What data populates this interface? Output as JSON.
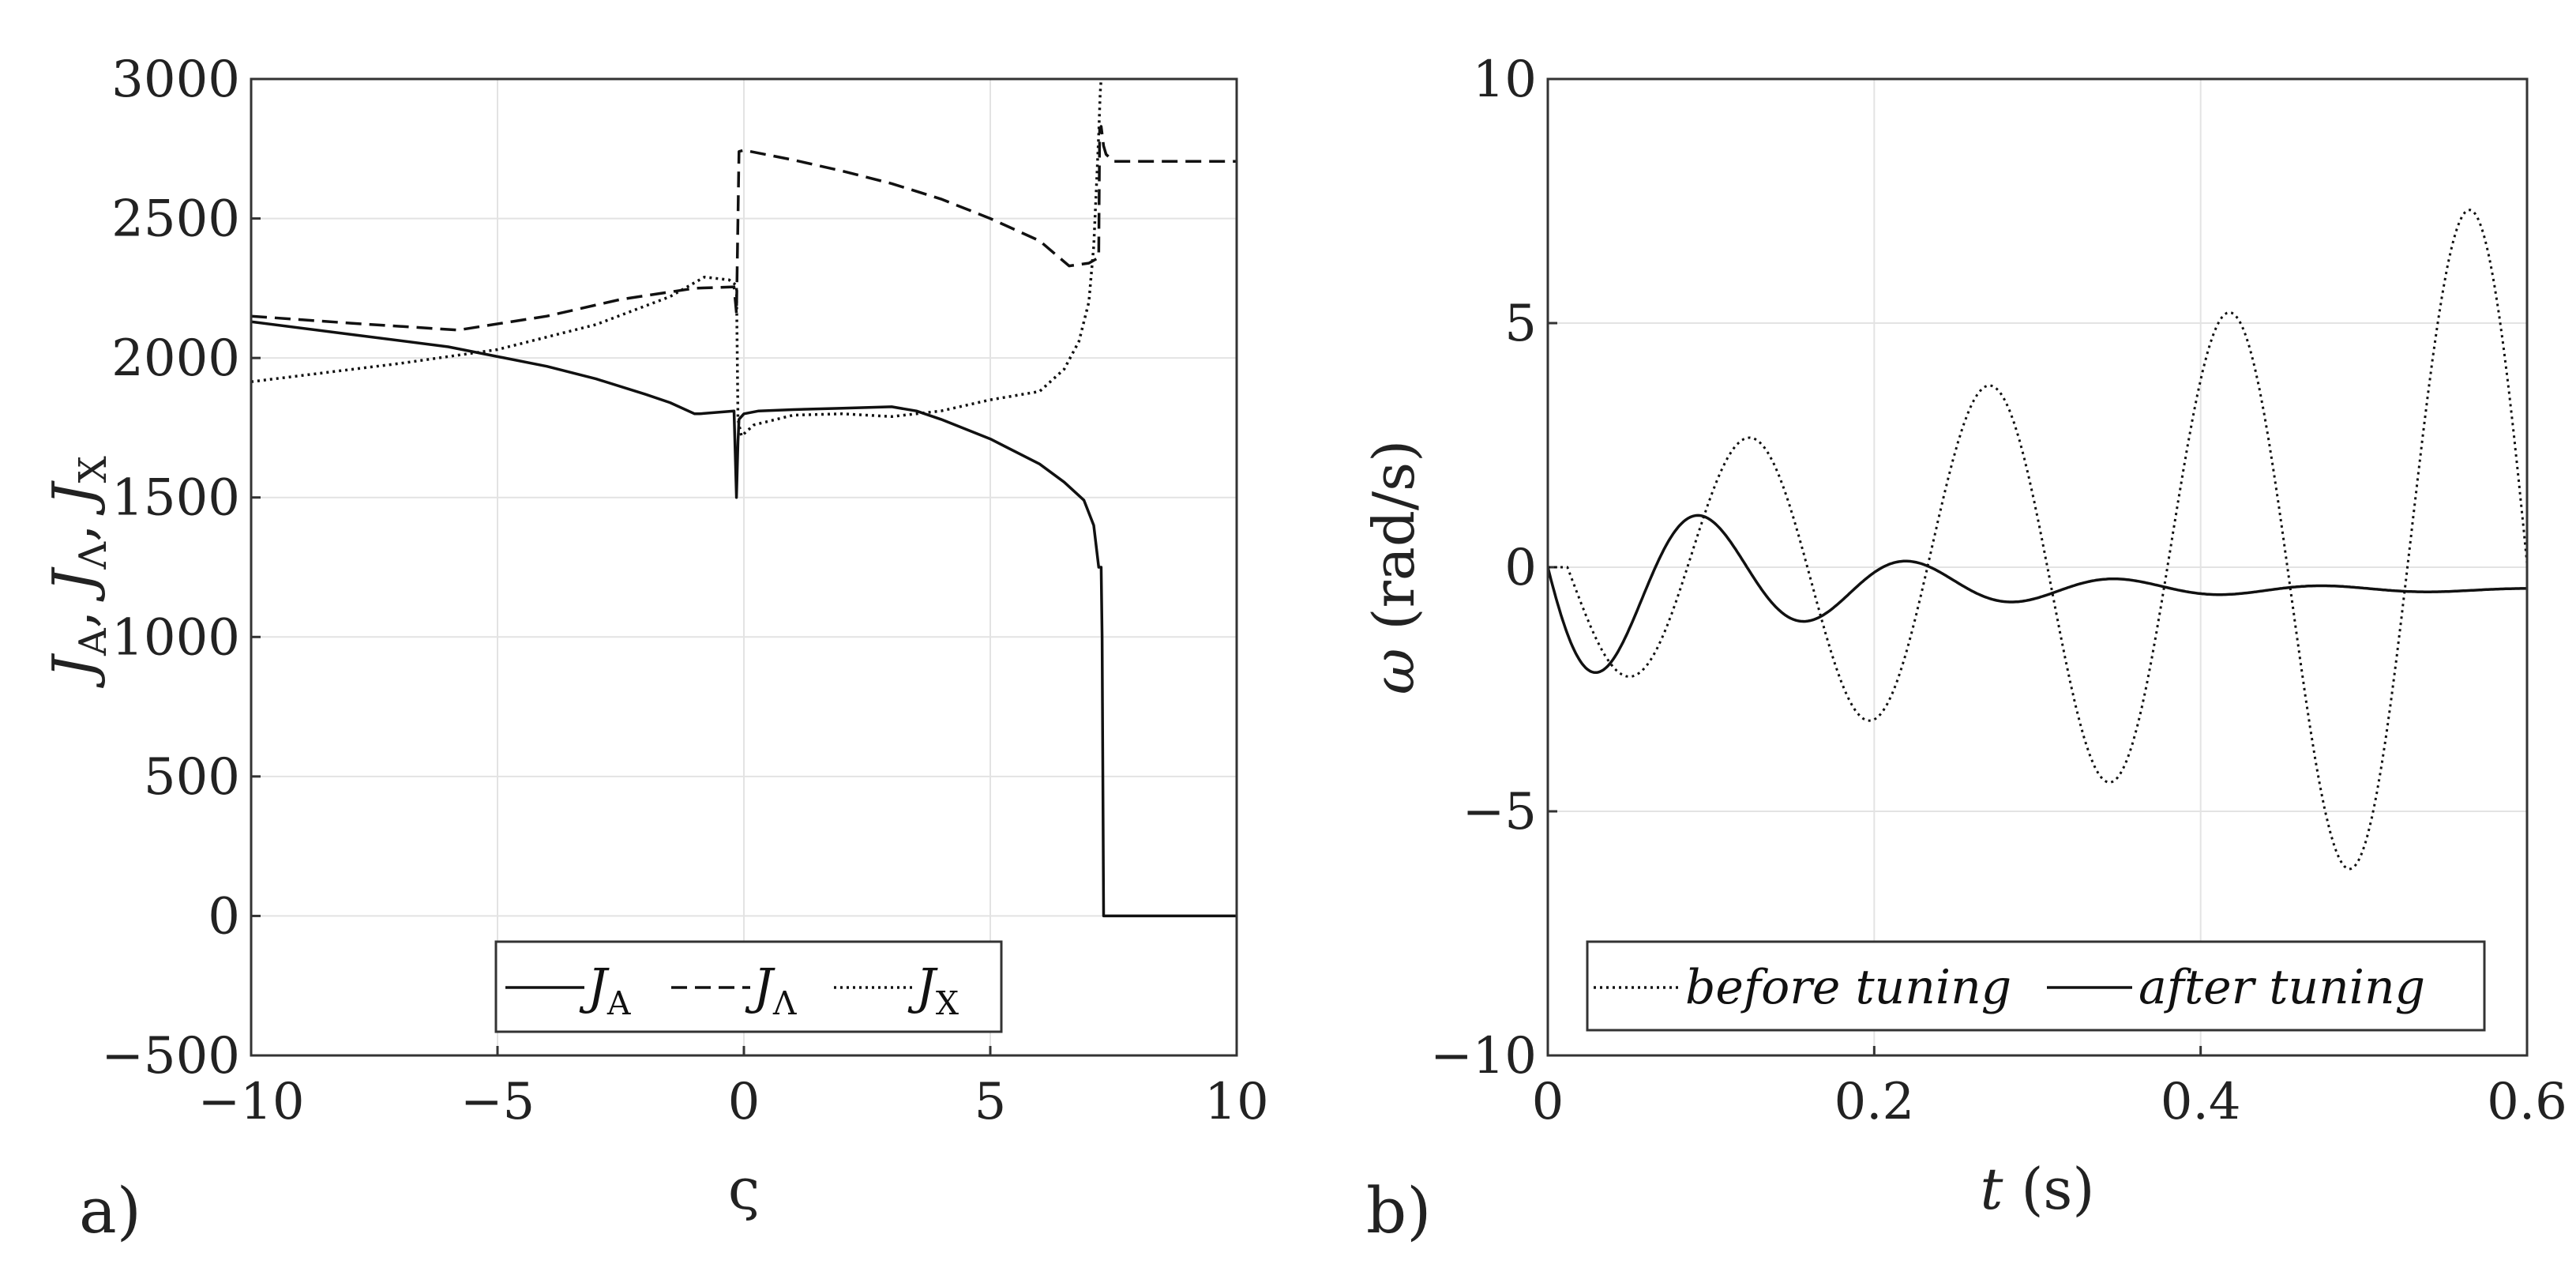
{
  "chart_data": [
    {
      "type": "line",
      "panel_label": "a)",
      "xlabel": "ς",
      "ylabel": [
        "J",
        "A",
        ", ",
        "J",
        "Λ",
        ", ",
        "J",
        "X"
      ],
      "xlim": [
        -10,
        10
      ],
      "ylim": [
        -500,
        3000
      ],
      "xticks": [
        -10,
        -5,
        0,
        5,
        10
      ],
      "xtick_labels": [
        "−10",
        "−5",
        "0",
        "5",
        "10"
      ],
      "yticks": [
        -500,
        0,
        500,
        1000,
        1500,
        2000,
        2500,
        3000
      ],
      "ytick_labels": [
        "−500",
        "0",
        "500",
        "1000",
        "1500",
        "2000",
        "2500",
        "3000"
      ],
      "grid": true,
      "legend_position": "bottom-center",
      "series": [
        {
          "name": "J_A",
          "legend": {
            "base": "J",
            "sub": "A"
          },
          "style": "solid",
          "x": [
            -10,
            -8,
            -6,
            -4,
            -3,
            -2,
            -1.5,
            -1,
            -0.9,
            -0.2,
            -0.15,
            -0.12,
            -0.1,
            0.0,
            0.3,
            1,
            2,
            3,
            3.5,
            4,
            5,
            6,
            6.5,
            6.9,
            7.1,
            7.2,
            7.25,
            7.27,
            7.3,
            10
          ],
          "y": [
            2130,
            2085,
            2040,
            1970,
            1925,
            1870,
            1840,
            1800,
            1800,
            1810,
            1500,
            1700,
            1780,
            1800,
            1810,
            1815,
            1820,
            1825,
            1810,
            1780,
            1710,
            1620,
            1555,
            1490,
            1400,
            1250,
            1250,
            1000,
            0,
            0
          ]
        },
        {
          "name": "J_Λ",
          "legend": {
            "base": "J",
            "sub": "Λ"
          },
          "style": "dashed",
          "x": [
            -10,
            -8,
            -5.8,
            -4,
            -2.5,
            -1,
            -0.2,
            -0.15,
            -0.1,
            0.0,
            1,
            2,
            3,
            4,
            5,
            6,
            6.6,
            7.0,
            7.2,
            7.22,
            7.25,
            7.3,
            7.35,
            7.5,
            10
          ],
          "y": [
            2150,
            2125,
            2100,
            2150,
            2210,
            2250,
            2255,
            2160,
            2740,
            2745,
            2710,
            2670,
            2625,
            2570,
            2500,
            2420,
            2330,
            2340,
            2360,
            2820,
            2830,
            2760,
            2730,
            2705,
            2705
          ]
        },
        {
          "name": "J_X",
          "legend": {
            "base": "J",
            "sub": "X"
          },
          "style": "dotted",
          "x": [
            -10,
            -7,
            -5,
            -3,
            -1.5,
            -0.8,
            -0.3,
            -0.15,
            -0.12,
            -0.05,
            0.2,
            1,
            2,
            3,
            4,
            5,
            6,
            6.5,
            6.8,
            7.0,
            7.1,
            7.15,
            7.2,
            7.23,
            7.25
          ],
          "y": [
            1915,
            1980,
            2030,
            2120,
            2220,
            2290,
            2280,
            2260,
            1780,
            1720,
            1760,
            1795,
            1800,
            1790,
            1810,
            1850,
            1880,
            1960,
            2060,
            2200,
            2400,
            2600,
            2800,
            2950,
            3000
          ]
        }
      ]
    },
    {
      "type": "line",
      "panel_label": "b)",
      "xlabel": "t (s)",
      "ylabel": "ω (rad/s)",
      "xlim": [
        0,
        0.6
      ],
      "ylim": [
        -10,
        10
      ],
      "xticks": [
        0,
        0.2,
        0.4,
        0.6
      ],
      "xtick_labels": [
        "0",
        "0.2",
        "0.4",
        "0.6"
      ],
      "yticks": [
        -10,
        -5,
        0,
        5,
        10
      ],
      "ytick_labels": [
        "−10",
        "−5",
        "0",
        "5",
        "10"
      ],
      "grid": true,
      "legend_position": "bottom-center",
      "series": [
        {
          "name": "before tuning",
          "style": "dotted",
          "model": {
            "amp0": 2.0,
            "growth": 2.3,
            "freq": 6.8,
            "phase": 0.012
          }
        },
        {
          "name": "after tuning",
          "style": "solid",
          "model": {
            "amp0": 2.6,
            "decay": 7.5,
            "freq": 7.85,
            "offset": -0.47,
            "offset_rate": 7.0
          }
        }
      ]
    }
  ]
}
